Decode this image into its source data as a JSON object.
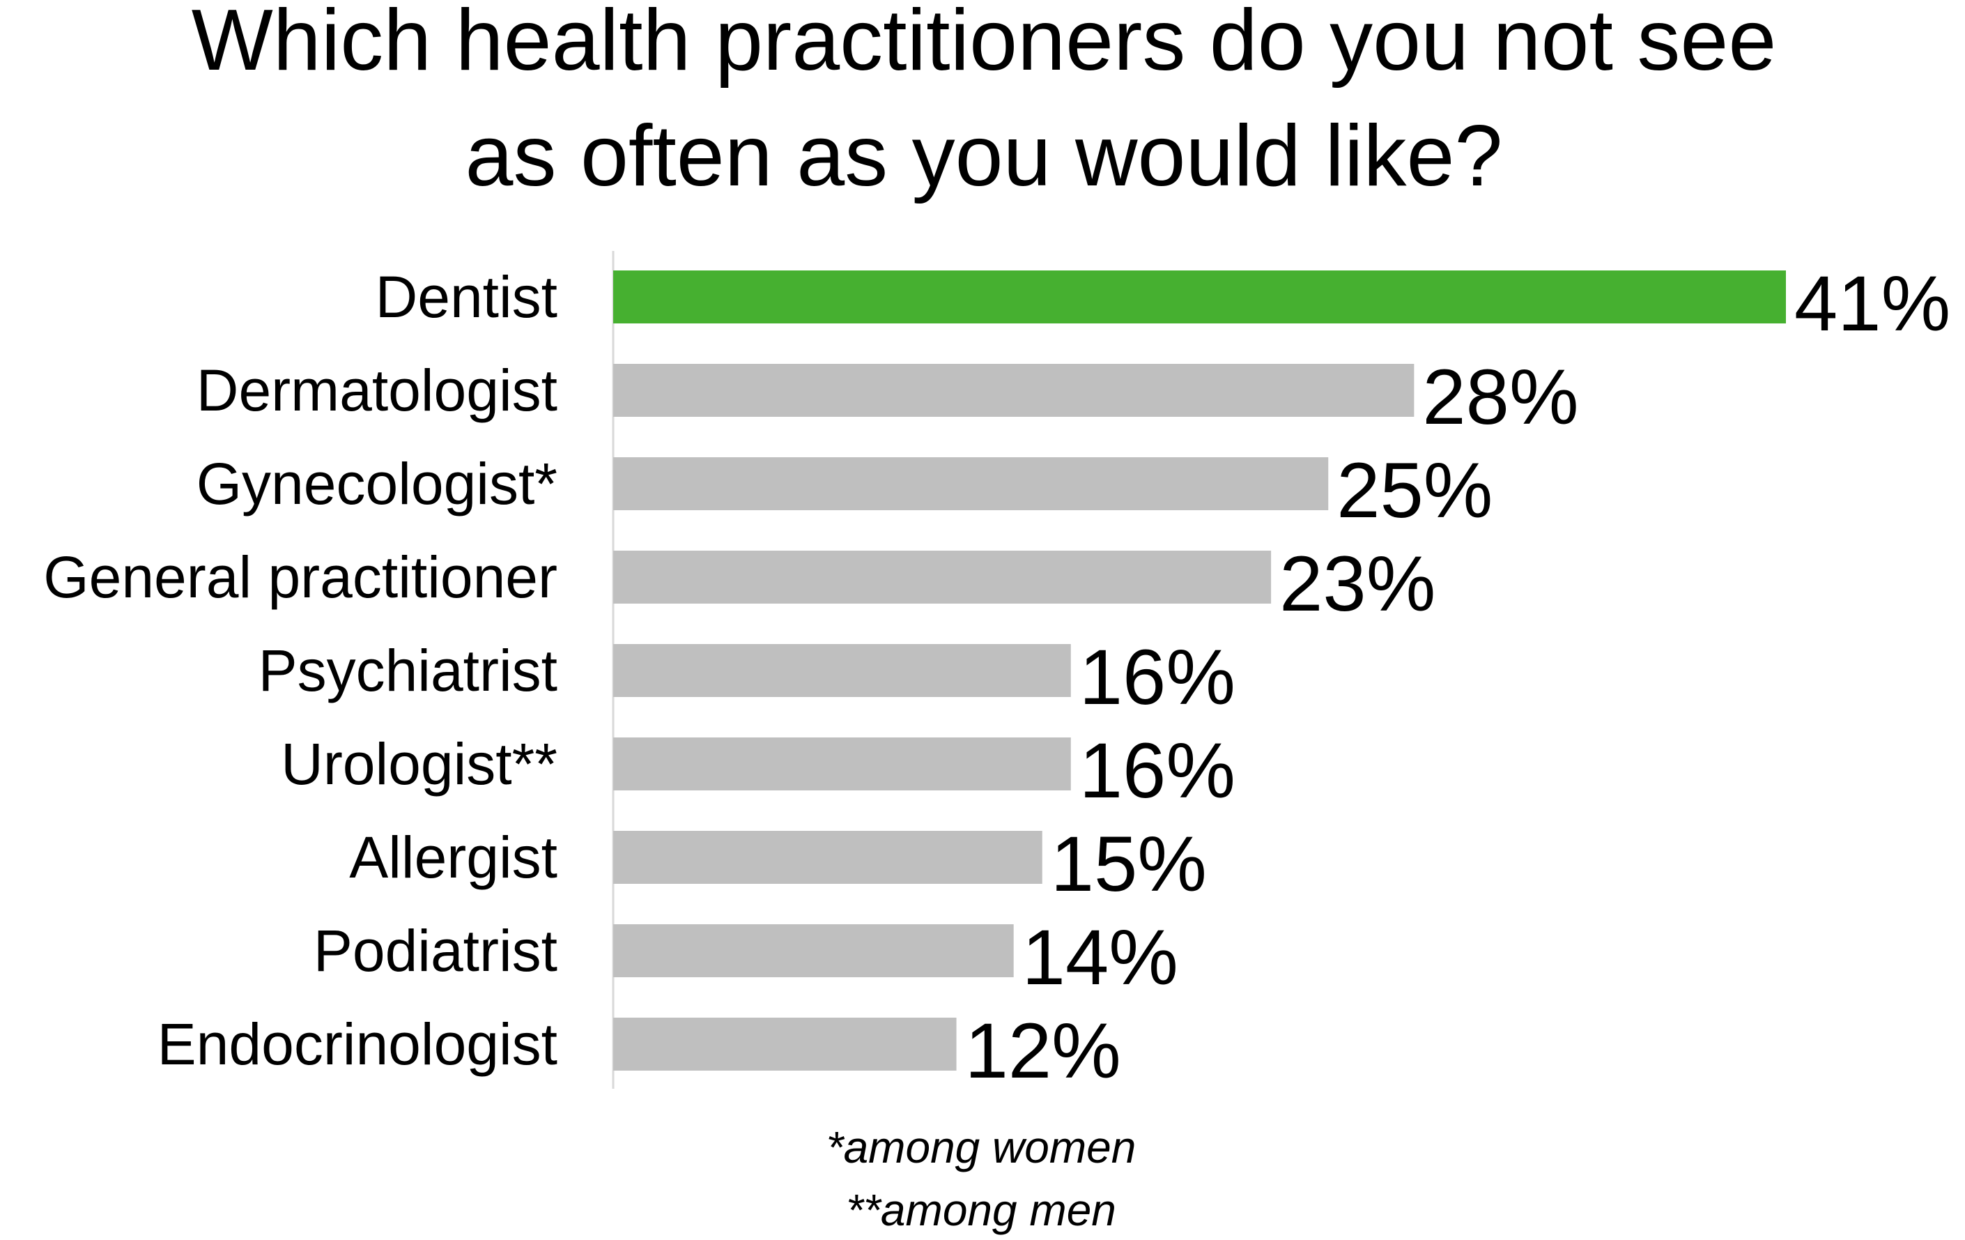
{
  "chart_data": {
    "type": "bar",
    "orientation": "horizontal",
    "title": [
      "Which health practitioners do you not see",
      "as often as you would like?"
    ],
    "categories": [
      "Dentist",
      "Dermatologist",
      "Gynecologist*",
      "General practitioner",
      "Psychiatrist",
      "Urologist**",
      "Allergist",
      "Podiatrist",
      "Endocrinologist"
    ],
    "values": [
      41,
      28,
      25,
      23,
      16,
      16,
      15,
      14,
      12
    ],
    "data_labels": [
      "41%",
      "28%",
      "25%",
      "23%",
      "16%",
      "16%",
      "15%",
      "14%",
      "12%"
    ],
    "unit": "%",
    "xlim": [
      0,
      41
    ],
    "grid": false,
    "highlight_color": "#46b030",
    "bar_color": "#bfbfbf",
    "footnotes": [
      "*among women",
      "**among men"
    ]
  }
}
